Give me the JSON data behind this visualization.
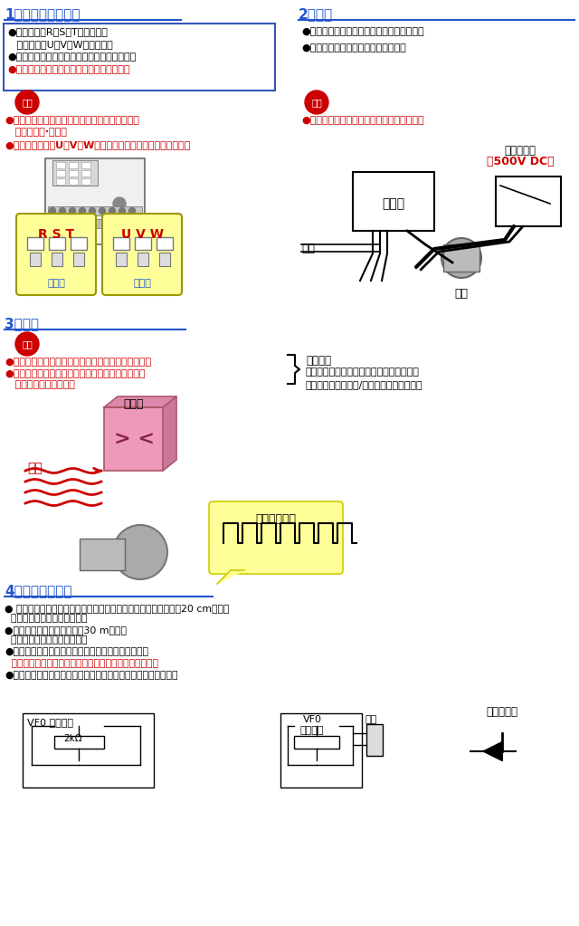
{
  "title1": "1．主回路端子接线",
  "title2": "2．注意",
  "title3": "3．注意",
  "title4": "4．控制端子接线",
  "sec1_box_texts": [
    "●输入端子（R，S，T）接电源、",
    "   输出端子（U，V，W）接马达。",
    "●主电路接线完毕，一定要确认连接是否牢固。",
    "●请务必接上地线，以避免发生触电及火灾。"
  ],
  "sec1_last_red": "●请务必接上地线，以避免发生触电及火灾。",
  "sec2_texts": [
    "●在变频器的电线间请勿进行绝缘电阻测试。",
    "●请勿对控制电路进行兆欧表的测量。"
  ],
  "caution_label": "注意",
  "sec1_caution_red_texts": [
    "●请确认商品的额定电压与交流电源的电压一致。",
    "   以避免受伤·火灾。",
    "●不要在输出端子U、V、W上连接交流电源。以避免发生故障。"
  ],
  "sec2_caution_red_text": "●在变频器的电线间请勿进行绝缘电阻测试。",
  "megaohm_label": "兆欧表测试",
  "megaohm_500v": "（500V DC）",
  "vfd_label1": "变频器",
  "power_label": "电源",
  "motor_label": "马达",
  "rst_label": "R S T",
  "uvw_label": "U V W",
  "power_side": "电源侧",
  "motor_side": "马达侧",
  "sec3_caution_texts": [
    "●变频器的输出端请勿安装进相电容器或浪涌制动器。",
    "●这会导致变频器发生故障或使电容器等受损，如果",
    "   已经接上了，请拆除。"
  ],
  "sec3_reason_title": "【理由】",
  "sec3_reason_texts": [
    "变频器的输出电压波形是高电压脉冲波形，",
    "所以在进相电容器冲/放电中会产生过电流！"
  ],
  "vfd_label2": "变频器",
  "current_label": "电流",
  "wave_label": "输出电压波形",
  "sec4_texts": [
    "● 控制信号线请使用屏蔽线，并与动力线或强电电路分离布线。（20 cm以上）",
    "  ＊防止电气干扰造成误动作。",
    "●控制信号线的接线长度应在30 m以下。",
    "  ＊防止电气干扰造成误动作。",
    "●控制端子请连接无电压接点信号或开路集电极信号。",
    "  ＊如果对这些端子施加电压会损坏内部电路，导致故障。",
    "●用开路集电极输出驱动感性负载时，请一定要连接续流二极管。"
  ],
  "sec4_red_text": "  ＊如果对这些端子施加电压会损坏内部电路，导致故障。",
  "diode_label": "续流二极管",
  "vf0_label1": "VF0 内部回路",
  "resistor_label": "2kΩ",
  "vf0_label2": "VF0\n内部回路",
  "terminal_label": "端子"
}
